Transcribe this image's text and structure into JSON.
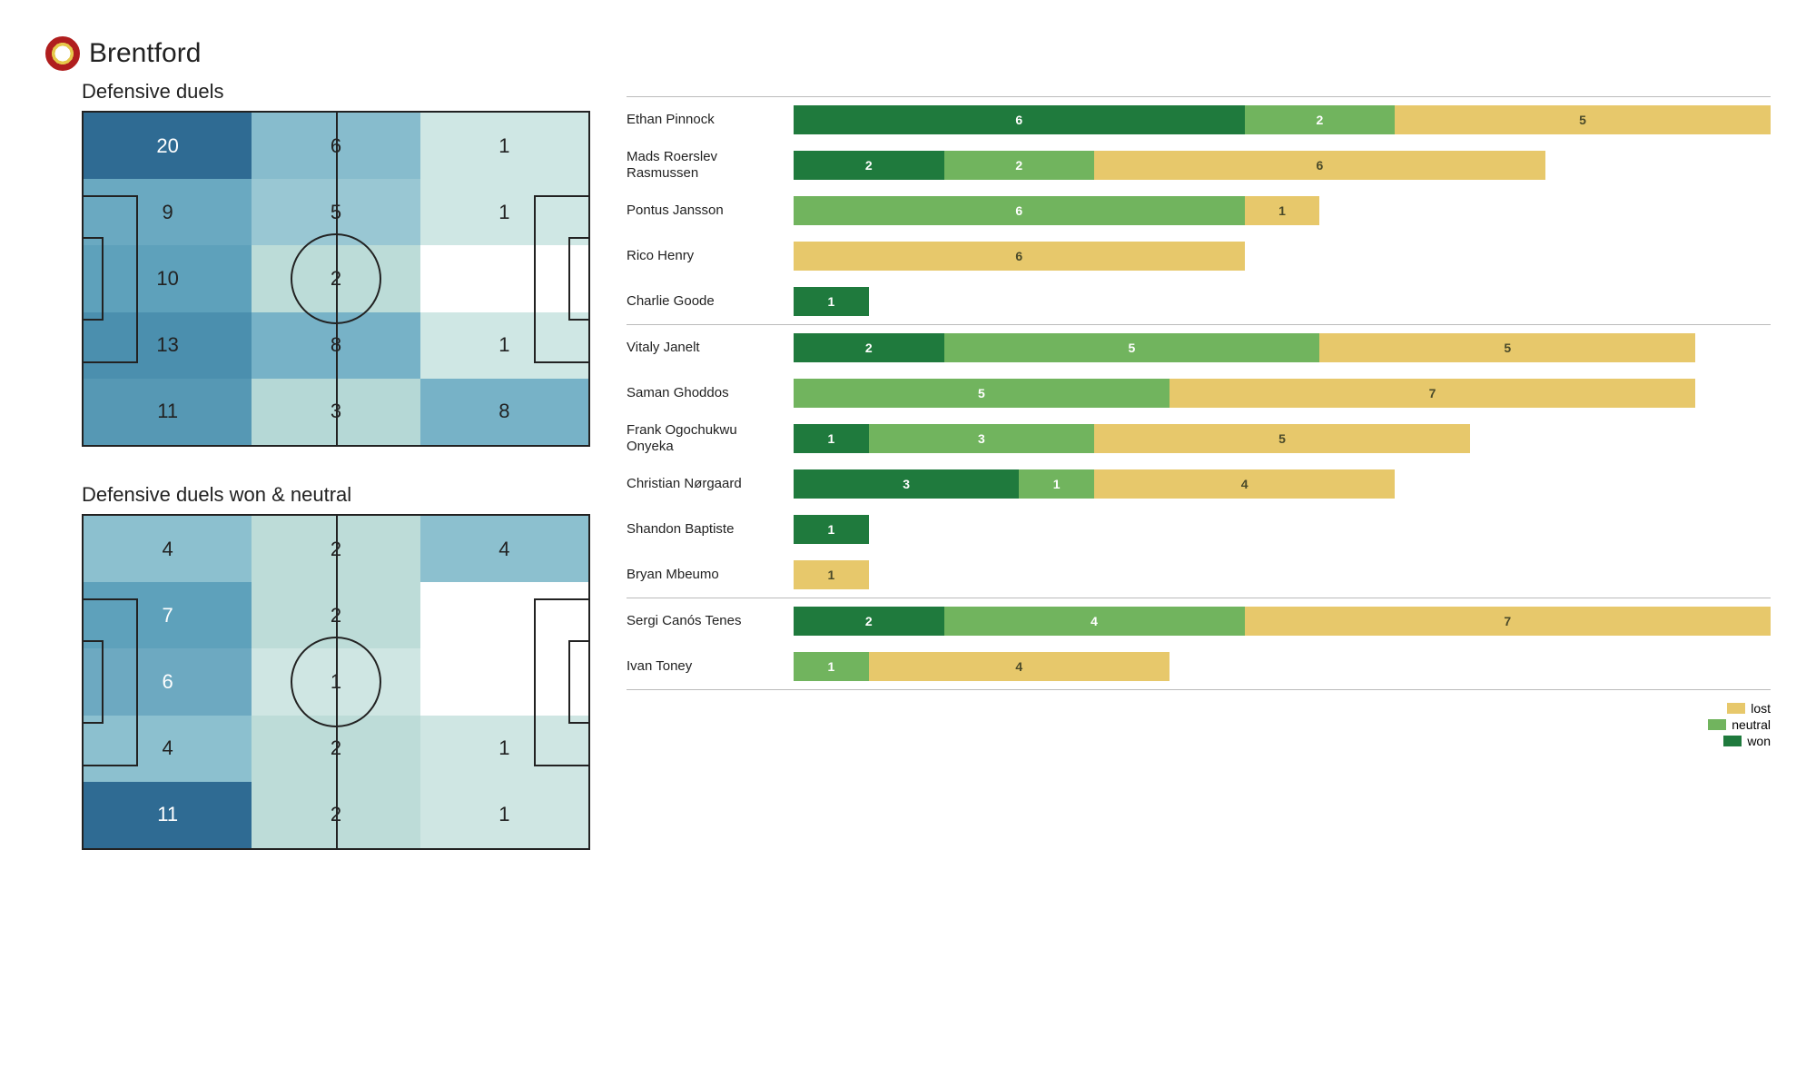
{
  "team_name": "Brentford",
  "heatmap_palette_min": "#ffffff",
  "heatmap_palette_max": "#2f6b93",
  "pitch_line_color": "#222222",
  "heatmap_text_light": "#ffffff",
  "heatmap_text_dark": "#222222",
  "heatmap1": {
    "title": "Defensive duels",
    "rows": 5,
    "cols": 3,
    "max": 20,
    "cells": [
      {
        "v": 20,
        "bg": "#2f6b93",
        "tc": "#ffffff"
      },
      {
        "v": 6,
        "bg": "#87bccd",
        "tc": "#222222"
      },
      {
        "v": 1,
        "bg": "#cfe7e4",
        "tc": "#222222"
      },
      {
        "v": 9,
        "bg": "#6aa9c1",
        "tc": "#222222"
      },
      {
        "v": 5,
        "bg": "#99c7d3",
        "tc": "#222222"
      },
      {
        "v": 1,
        "bg": "#cfe7e4",
        "tc": "#222222"
      },
      {
        "v": 10,
        "bg": "#5ea1bb",
        "tc": "#222222"
      },
      {
        "v": 2,
        "bg": "#bcdcd8",
        "tc": "#222222"
      },
      {
        "v": "",
        "bg": "#ffffff",
        "tc": "#222222"
      },
      {
        "v": 13,
        "bg": "#4b8fae",
        "tc": "#222222"
      },
      {
        "v": 8,
        "bg": "#77b2c7",
        "tc": "#222222"
      },
      {
        "v": 1,
        "bg": "#cfe7e4",
        "tc": "#222222"
      },
      {
        "v": 11,
        "bg": "#5698b4",
        "tc": "#222222"
      },
      {
        "v": 3,
        "bg": "#b5d8d6",
        "tc": "#222222"
      },
      {
        "v": 8,
        "bg": "#77b2c7",
        "tc": "#222222"
      }
    ]
  },
  "heatmap2": {
    "title": "Defensive duels won & neutral",
    "rows": 5,
    "cols": 3,
    "max": 11,
    "cells": [
      {
        "v": 4,
        "bg": "#8cc0cf",
        "tc": "#222222"
      },
      {
        "v": 2,
        "bg": "#bddcd8",
        "tc": "#222222"
      },
      {
        "v": 4,
        "bg": "#8cc0cf",
        "tc": "#222222"
      },
      {
        "v": 7,
        "bg": "#5ea1bb",
        "tc": "#ffffff"
      },
      {
        "v": 2,
        "bg": "#bddcd8",
        "tc": "#222222"
      },
      {
        "v": "",
        "bg": "#ffffff",
        "tc": "#222222"
      },
      {
        "v": 6,
        "bg": "#6da9c1",
        "tc": "#ffffff"
      },
      {
        "v": 1,
        "bg": "#cfe6e3",
        "tc": "#222222"
      },
      {
        "v": "",
        "bg": "#ffffff",
        "tc": "#222222"
      },
      {
        "v": 4,
        "bg": "#8cc0cf",
        "tc": "#222222"
      },
      {
        "v": 2,
        "bg": "#bddcd8",
        "tc": "#222222"
      },
      {
        "v": 1,
        "bg": "#cfe6e3",
        "tc": "#222222"
      },
      {
        "v": 11,
        "bg": "#2f6b93",
        "tc": "#ffffff"
      },
      {
        "v": 2,
        "bg": "#bddcd8",
        "tc": "#222222"
      },
      {
        "v": 1,
        "bg": "#cfe6e3",
        "tc": "#222222"
      }
    ]
  },
  "bars": {
    "max_total": 13,
    "colors": {
      "won": "#1f7a3d",
      "neutral": "#71b45e",
      "lost": "#e7c86b"
    },
    "text_on_won": "#ffffff",
    "text_on_neutral": "#ffffff",
    "text_on_lost": "#4a4a2a",
    "groups": [
      {
        "players": [
          {
            "name": "Ethan Pinnock",
            "won": 6,
            "neutral": 2,
            "lost": 5
          },
          {
            "name": "Mads Roerslev Rasmussen",
            "won": 2,
            "neutral": 2,
            "lost": 6
          },
          {
            "name": "Pontus Jansson",
            "won": 0,
            "neutral": 6,
            "lost": 1
          },
          {
            "name": "Rico Henry",
            "won": 0,
            "neutral": 0,
            "lost": 6
          },
          {
            "name": "Charlie Goode",
            "won": 1,
            "neutral": 0,
            "lost": 0
          }
        ]
      },
      {
        "players": [
          {
            "name": "Vitaly Janelt",
            "won": 2,
            "neutral": 5,
            "lost": 5
          },
          {
            "name": "Saman Ghoddos",
            "won": 0,
            "neutral": 5,
            "lost": 7
          },
          {
            "name": "Frank Ogochukwu Onyeka",
            "won": 1,
            "neutral": 3,
            "lost": 5
          },
          {
            "name": "Christian Nørgaard",
            "won": 3,
            "neutral": 1,
            "lost": 4
          },
          {
            "name": "Shandon Baptiste",
            "won": 1,
            "neutral": 0,
            "lost": 0
          },
          {
            "name": "Bryan Mbeumo",
            "won": 0,
            "neutral": 0,
            "lost": 1
          }
        ]
      },
      {
        "players": [
          {
            "name": "Sergi Canós Tenes",
            "won": 2,
            "neutral": 4,
            "lost": 7
          },
          {
            "name": "Ivan Toney",
            "won": 0,
            "neutral": 1,
            "lost": 4
          }
        ]
      }
    ]
  },
  "legend": {
    "lost": "lost",
    "neutral": "neutral",
    "won": "won"
  }
}
